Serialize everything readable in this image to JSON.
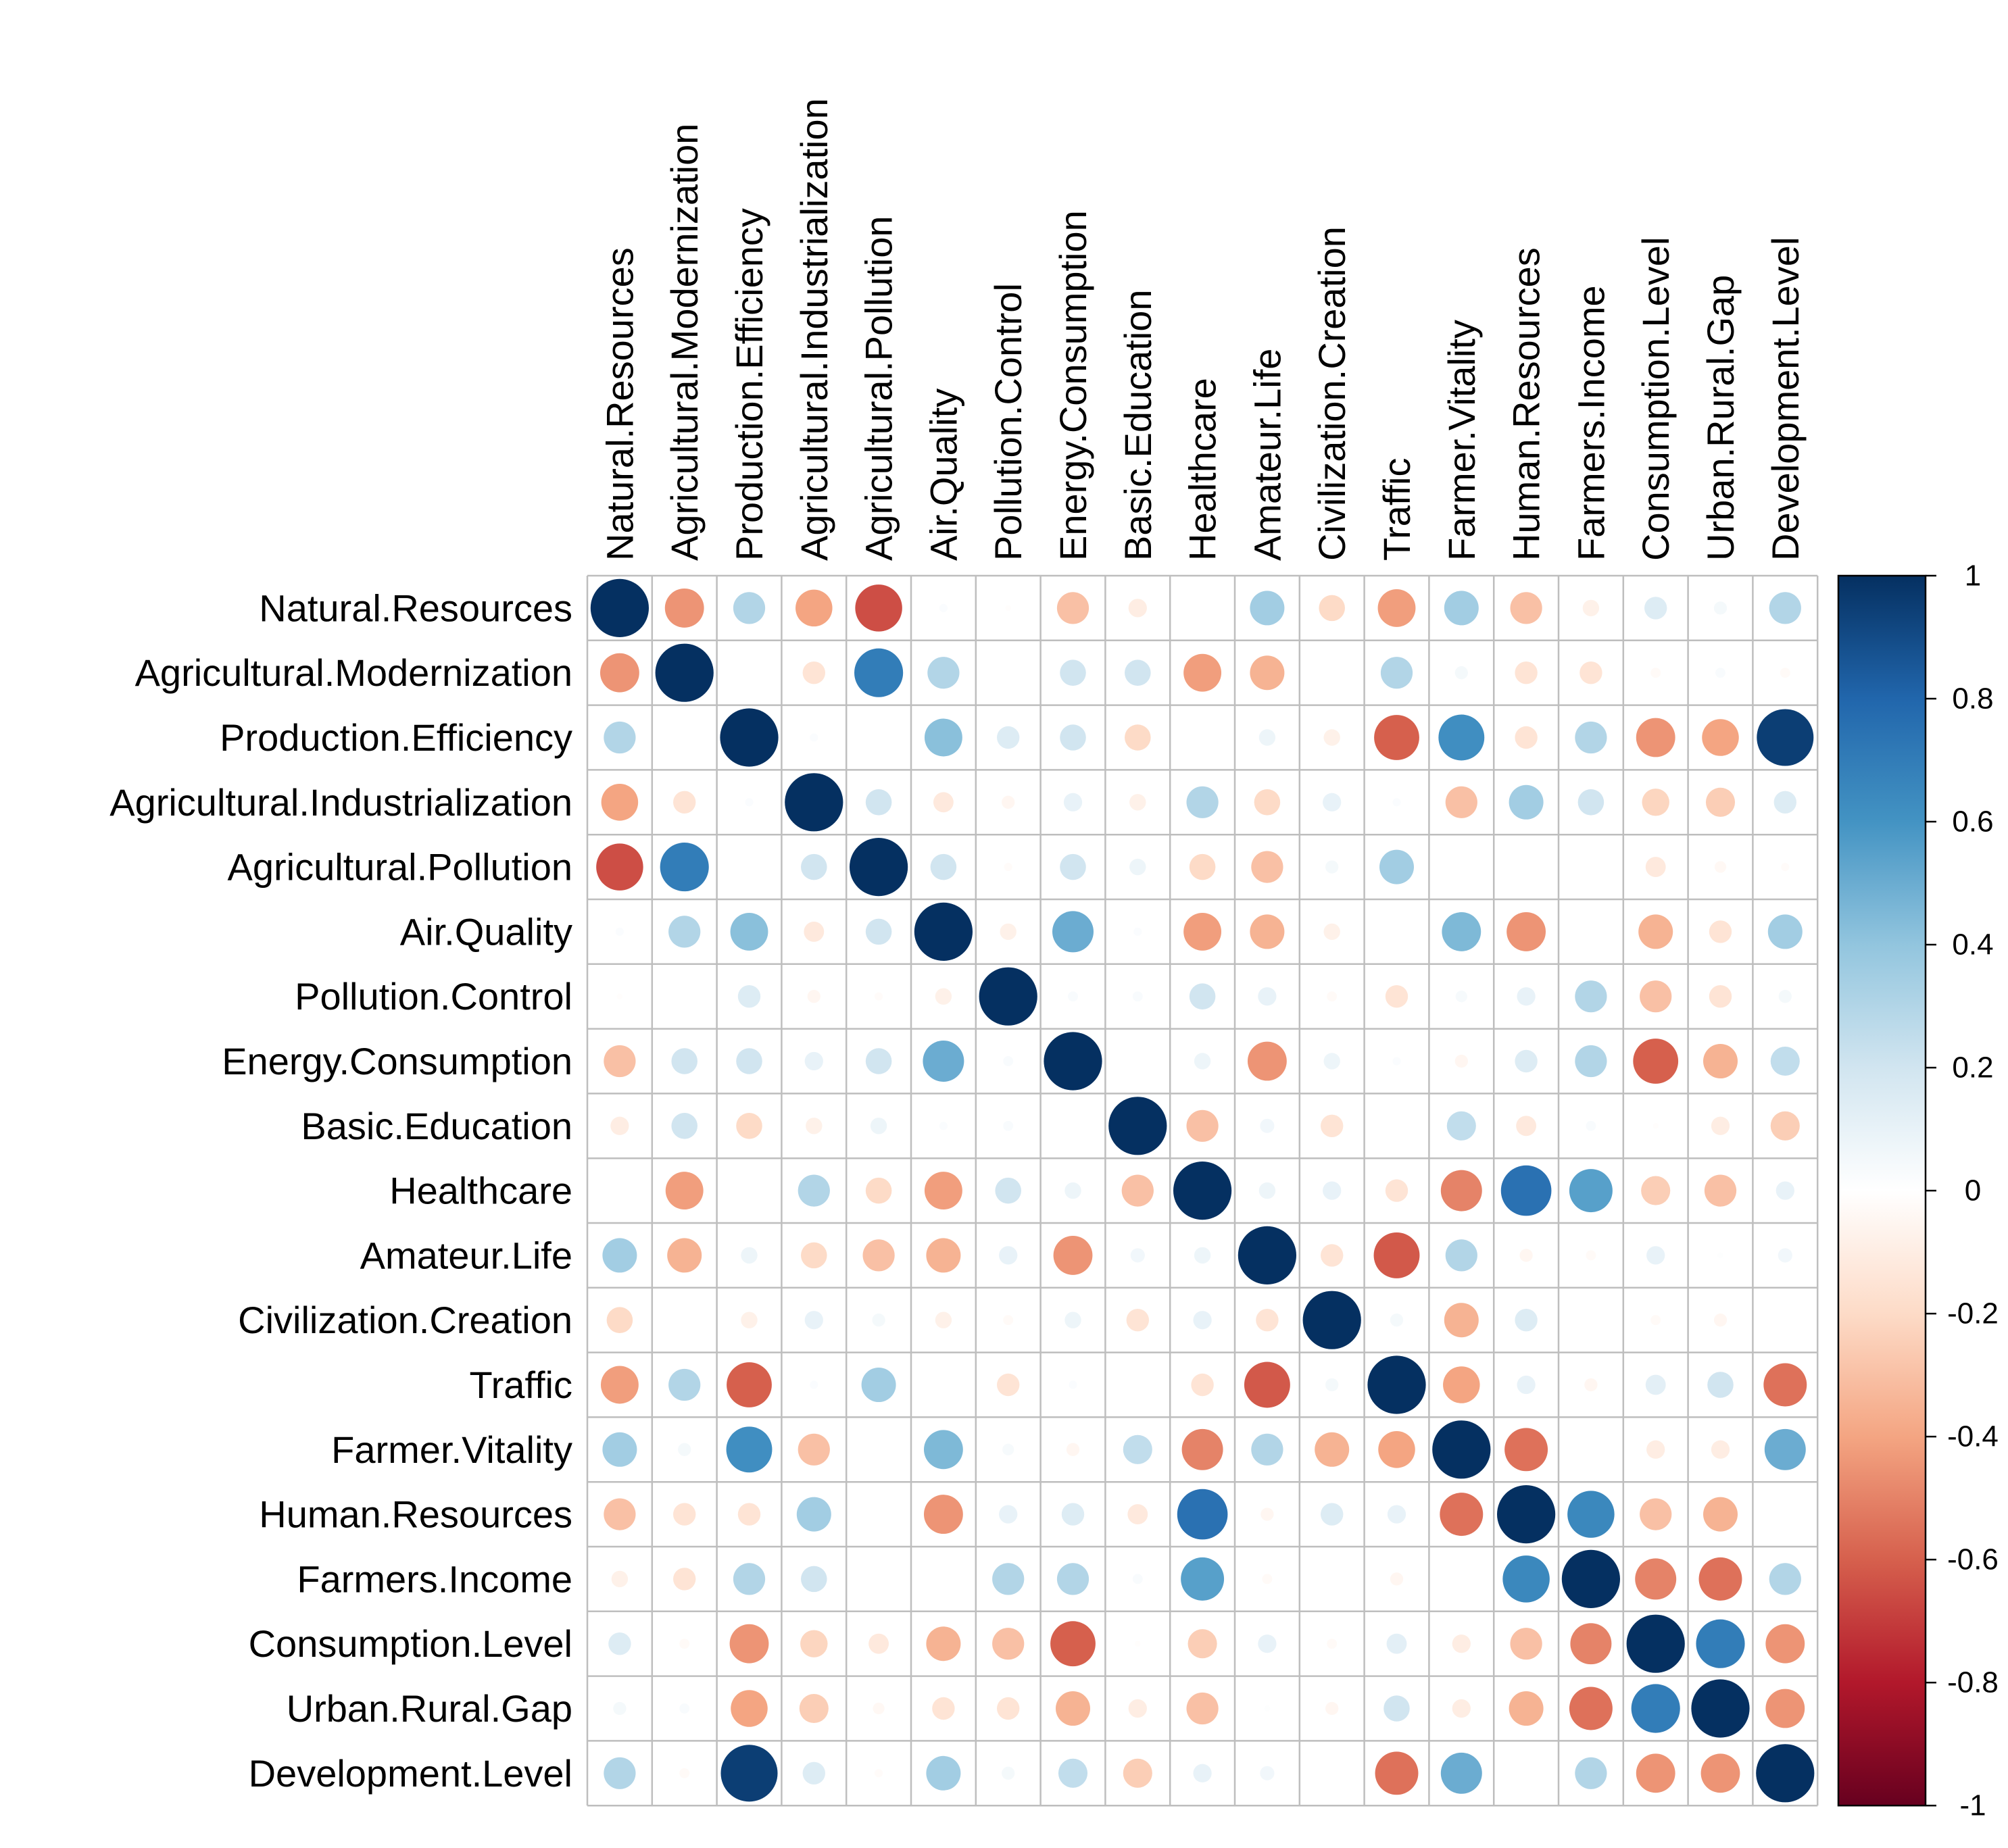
{
  "chart_data": {
    "type": "heatmap",
    "subtype": "correlation-circles",
    "title": "",
    "variables": [
      "Natural.Resources",
      "Agricultural.Modernization",
      "Production.Efficiency",
      "Agricultural.Industrialization",
      "Agricultural.Pollution",
      "Air.Quality",
      "Pollution.Control",
      "Energy.Consumption",
      "Basic.Education",
      "Healthcare",
      "Amateur.Life",
      "Civilization.Creation",
      "Traffic",
      "Farmer.Vitality",
      "Human.Resources",
      "Farmers.Income",
      "Consumption.Level",
      "Urban.Rural.Gap",
      "Development.Level"
    ],
    "matrix": [
      [
        1.0,
        -0.45,
        0.3,
        -0.4,
        -0.65,
        0.02,
        -0.01,
        -0.3,
        -0.1,
        0.0,
        0.35,
        -0.2,
        -0.42,
        0.35,
        -0.3,
        -0.08,
        0.15,
        0.05,
        0.3
      ],
      [
        -0.45,
        1.0,
        0.0,
        -0.15,
        0.7,
        0.3,
        0.0,
        0.2,
        0.2,
        -0.42,
        -0.35,
        0.0,
        0.3,
        0.05,
        -0.15,
        -0.15,
        -0.03,
        0.03,
        -0.03
      ],
      [
        0.3,
        0.0,
        1.0,
        0.02,
        0.0,
        0.42,
        0.15,
        0.2,
        -0.2,
        0.0,
        0.08,
        -0.08,
        -0.6,
        0.62,
        -0.15,
        0.3,
        -0.45,
        -0.4,
        0.95
      ],
      [
        -0.4,
        -0.15,
        0.02,
        1.0,
        0.2,
        -0.12,
        -0.05,
        0.1,
        -0.08,
        0.3,
        -0.2,
        0.1,
        0.02,
        -0.3,
        0.35,
        0.2,
        -0.22,
        -0.25,
        0.15
      ],
      [
        -0.65,
        0.7,
        0.0,
        0.2,
        1.0,
        0.2,
        -0.02,
        0.2,
        0.08,
        -0.2,
        -0.3,
        0.05,
        0.35,
        0.0,
        0.0,
        0.0,
        -0.12,
        -0.04,
        -0.02
      ],
      [
        0.02,
        0.3,
        0.42,
        -0.12,
        0.2,
        1.0,
        -0.08,
        0.5,
        0.02,
        -0.42,
        -0.35,
        -0.08,
        0.0,
        0.45,
        -0.45,
        0.0,
        -0.35,
        -0.15,
        0.35
      ],
      [
        -0.01,
        0.0,
        0.15,
        -0.05,
        -0.02,
        -0.08,
        1.0,
        0.03,
        0.03,
        0.2,
        0.1,
        -0.03,
        -0.15,
        0.04,
        0.1,
        0.3,
        -0.3,
        -0.15,
        0.05
      ],
      [
        -0.3,
        0.2,
        0.2,
        0.1,
        0.2,
        0.5,
        0.03,
        1.0,
        0.0,
        0.08,
        -0.45,
        0.08,
        0.02,
        -0.05,
        0.15,
        0.3,
        -0.6,
        -0.35,
        0.25
      ],
      [
        -0.1,
        0.2,
        -0.2,
        -0.08,
        0.08,
        0.02,
        0.03,
        0.0,
        1.0,
        -0.3,
        0.06,
        -0.15,
        0.0,
        0.25,
        -0.12,
        0.03,
        -0.01,
        -0.1,
        -0.25
      ],
      [
        0.0,
        -0.42,
        0.0,
        0.3,
        -0.2,
        -0.42,
        0.2,
        0.08,
        -0.3,
        1.0,
        0.08,
        0.1,
        -0.15,
        -0.5,
        0.75,
        0.55,
        -0.25,
        -0.3,
        0.1
      ],
      [
        0.35,
        -0.35,
        0.08,
        -0.2,
        -0.3,
        -0.35,
        0.1,
        -0.45,
        0.06,
        0.08,
        1.0,
        -0.15,
        -0.62,
        0.3,
        -0.05,
        -0.03,
        0.1,
        0.01,
        0.06
      ],
      [
        -0.2,
        0.0,
        -0.08,
        0.1,
        0.05,
        -0.08,
        -0.03,
        0.08,
        -0.15,
        0.1,
        -0.15,
        1.0,
        0.05,
        -0.35,
        0.15,
        0.0,
        -0.03,
        -0.05,
        0.0
      ],
      [
        -0.42,
        0.3,
        -0.6,
        0.02,
        0.35,
        0.0,
        -0.15,
        0.02,
        0.0,
        -0.15,
        -0.62,
        0.05,
        1.0,
        -0.4,
        0.1,
        -0.05,
        0.12,
        0.2,
        -0.55
      ],
      [
        0.35,
        0.05,
        0.62,
        -0.3,
        0.0,
        0.45,
        0.04,
        -0.05,
        0.25,
        -0.5,
        0.3,
        -0.35,
        -0.4,
        1.0,
        -0.55,
        0.0,
        -0.1,
        -0.1,
        0.5
      ],
      [
        -0.3,
        -0.15,
        -0.15,
        0.35,
        0.0,
        -0.45,
        0.1,
        0.15,
        -0.12,
        0.75,
        -0.05,
        0.15,
        0.1,
        -0.55,
        1.0,
        0.65,
        -0.3,
        -0.35,
        0.0
      ],
      [
        -0.08,
        -0.15,
        0.3,
        0.2,
        0.0,
        0.0,
        0.3,
        0.3,
        0.03,
        0.55,
        -0.03,
        0.0,
        -0.05,
        0.0,
        0.65,
        1.0,
        -0.5,
        -0.55,
        0.3
      ],
      [
        0.15,
        -0.03,
        -0.45,
        -0.22,
        -0.12,
        -0.35,
        -0.3,
        -0.6,
        -0.01,
        -0.25,
        0.1,
        -0.03,
        0.12,
        -0.1,
        -0.3,
        -0.5,
        1.0,
        0.7,
        -0.45
      ],
      [
        0.05,
        0.03,
        -0.4,
        -0.25,
        -0.04,
        -0.15,
        -0.15,
        -0.35,
        -0.1,
        -0.3,
        0.01,
        -0.05,
        0.2,
        -0.1,
        -0.35,
        -0.55,
        0.7,
        1.0,
        -0.45
      ],
      [
        0.3,
        -0.03,
        0.95,
        0.15,
        -0.02,
        0.35,
        0.05,
        0.25,
        -0.25,
        0.1,
        0.06,
        0.0,
        -0.55,
        0.5,
        0.0,
        0.3,
        -0.45,
        -0.45,
        1.0
      ]
    ],
    "color_scale": {
      "range": [
        -1,
        1
      ],
      "ticks": [
        "1",
        "0.8",
        "0.6",
        "0.4",
        "0.2",
        "0",
        "-0.2",
        "-0.4",
        "-0.6",
        "-0.8",
        "-1"
      ],
      "tick_values": [
        1,
        0.8,
        0.6,
        0.4,
        0.2,
        0,
        -0.2,
        -0.4,
        -0.6,
        -0.8,
        -1
      ],
      "stops": [
        "#67001F",
        "#B2182B",
        "#D6604D",
        "#F4A582",
        "#FDDBC7",
        "#FFFFFF",
        "#D1E5F0",
        "#92C5DE",
        "#4393C3",
        "#2166AC",
        "#053061"
      ]
    },
    "grid_color": "#BEBEBE",
    "legend_position": "right"
  }
}
